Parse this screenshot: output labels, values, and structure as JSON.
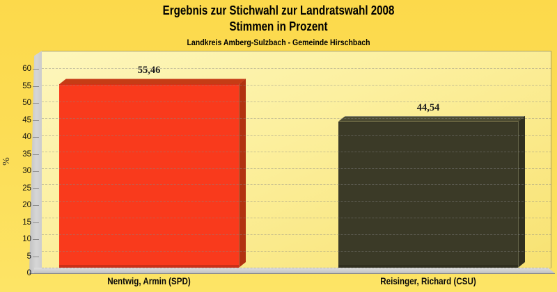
{
  "header": {
    "title_line1": "Ergebnis zur Stichwahl zur Landratswahl 2008",
    "title_line2": "Stimmen in Prozent",
    "subtitle": "Landkreis Amberg-Sulzbach - Gemeinde Hirschbach"
  },
  "chart_data": {
    "type": "bar",
    "title": "Ergebnis zur Stichwahl zur Landratswahl 2008 - Stimmen in Prozent",
    "subtitle": "Landkreis Amberg-Sulzbach - Gemeinde Hirschbach",
    "categories": [
      "Nentwig, Armin (SPD)",
      "Reisinger, Richard (CSU)"
    ],
    "values": [
      55.46,
      44.54
    ],
    "value_labels": [
      "55,46",
      "44,54"
    ],
    "xlabel": "",
    "ylabel": "%",
    "ylim": [
      0,
      60
    ],
    "ytick_step": 5,
    "yticks": [
      0,
      5,
      10,
      15,
      20,
      25,
      30,
      35,
      40,
      45,
      50,
      55,
      60
    ],
    "grid": "horizontal-dashed",
    "legend": "none",
    "bar_style": "3d",
    "series_colors": [
      {
        "front": "#f93a1c",
        "top": "#c63c15",
        "side": "#b23210"
      },
      {
        "front": "#3b3a27",
        "top": "#4c4b32",
        "side": "#31301f"
      }
    ],
    "background": {
      "outer": "#fcdc52",
      "wall_top": "#fdf6bc",
      "wall_bottom": "#f8e272",
      "wall_edge": "#a59d68",
      "side_wall": "#d0d0d0",
      "floor": "#cdcdcd",
      "gridline": "#8c8c8c",
      "axis_line": "#8a8a8a"
    }
  }
}
